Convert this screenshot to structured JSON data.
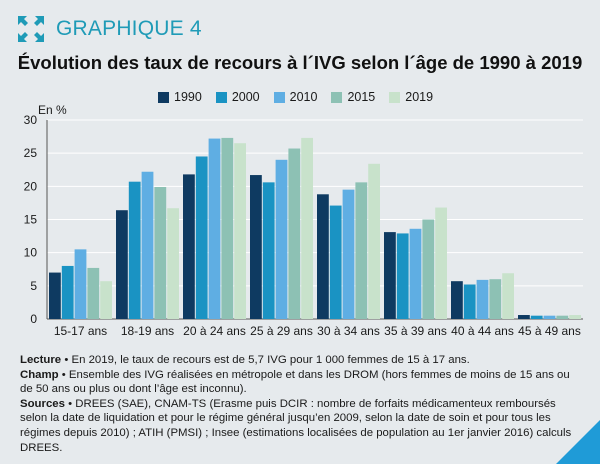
{
  "header": {
    "figure_label": "GRAPHIQUE 4",
    "icon": "expand-arrows-icon"
  },
  "title": "Évolution des taux de recours à l´IVG selon l´âge de 1990 à 2019",
  "colors": {
    "accent": "#1f9bb7",
    "background": "#e6eaed",
    "series": [
      "#0e3a61",
      "#1a93c3",
      "#5faee3",
      "#8dc1b4",
      "#c8e2cb"
    ],
    "corner": "#1f9bd7"
  },
  "chart_data": {
    "type": "bar",
    "title": "Évolution des taux de recours à l´IVG selon l´âge de 1990 à 2019",
    "ylabel": "En %",
    "xlabel": "",
    "ylim": [
      0,
      30
    ],
    "yticks": [
      0,
      5,
      10,
      15,
      20,
      25,
      30
    ],
    "grid": true,
    "legend_position": "top",
    "categories": [
      "15-17 ans",
      "18-19 ans",
      "20 à 24 ans",
      "25 à 29 ans",
      "30 à 34 ans",
      "35 à 39 ans",
      "40 à 44 ans",
      "45 à 49 ans"
    ],
    "series": [
      {
        "name": "1990",
        "values": [
          7.0,
          16.4,
          21.8,
          21.7,
          18.8,
          13.1,
          5.7,
          0.6
        ]
      },
      {
        "name": "2000",
        "values": [
          8.0,
          20.7,
          24.5,
          20.6,
          17.1,
          12.9,
          5.2,
          0.5
        ]
      },
      {
        "name": "2010",
        "values": [
          10.5,
          22.2,
          27.2,
          24.0,
          19.5,
          13.6,
          5.9,
          0.5
        ]
      },
      {
        "name": "2015",
        "values": [
          7.7,
          19.9,
          27.3,
          25.7,
          20.6,
          15.0,
          6.0,
          0.5
        ]
      },
      {
        "name": "2019",
        "values": [
          5.7,
          16.7,
          26.5,
          27.3,
          23.4,
          16.8,
          6.9,
          0.6
        ]
      }
    ]
  },
  "notes": [
    {
      "label": "Lecture",
      "text": " • En 2019, le taux de recours est de 5,7 IVG pour 1 000 femmes de 15 à 17 ans."
    },
    {
      "label": "Champ",
      "text": " • Ensemble des IVG réalisées en métropole et dans les DROM (hors femmes de moins de 15 ans ou de 50 ans ou plus ou dont l’âge est inconnu)."
    },
    {
      "label": "Sources",
      "text": " • DREES (SAE), CNAM-TS (Erasme puis DCIR : nombre de forfaits médicamenteux remboursés selon la date de liquidation et pour le régime général jusqu’en 2009, selon la date de soin et pour tous les régimes depuis 2010) ; ATIH (PMSI) ; Insee (estimations localisées de population au 1er janvier 2016) calculs DREES."
    }
  ]
}
